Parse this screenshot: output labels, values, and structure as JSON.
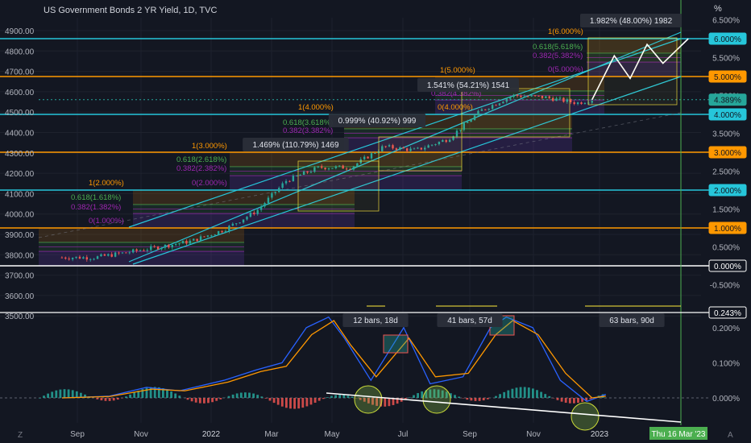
{
  "title": "US Government Bonds 2 YR Yield, 1D, TVC",
  "percent_header": "%",
  "colors": {
    "background": "#131722",
    "cyan": "#26c6da",
    "orange": "#ff9800",
    "white": "#ffffff",
    "green": "#26a69a",
    "red": "#ef5350",
    "blue_line": "#2962ff",
    "orange_line": "#ff9800",
    "fib_green": "#4caf50",
    "fib_purple": "#9c27b0",
    "yellow": "#ffeb3b",
    "vline_green": "#4caf50"
  },
  "chart_data": [
    {
      "type": "candlestick",
      "title": "US Government Bonds 2 YR Yield, 1D, TVC",
      "left_axis": [
        "4900.00",
        "4800.00",
        "4700.00",
        "4600.00",
        "4500.00",
        "4400.00",
        "4300.00",
        "4200.00",
        "4100.00",
        "4000.00",
        "3900.00",
        "3800.00",
        "3700.00",
        "3600.00",
        "3500.00"
      ],
      "left_axis_range": [
        3500,
        4900
      ],
      "right_axis": [
        "6.500%",
        "5.500%",
        "4.500%",
        "3.500%",
        "2.500%",
        "1.500%",
        "0.500%",
        "-0.500%"
      ],
      "right_axis_range": [
        -0.5,
        6.5
      ],
      "x_ticks": [
        "Sep",
        "Nov",
        "2022",
        "Mar",
        "May",
        "Jul",
        "Sep",
        "Nov",
        "2023"
      ],
      "series_path_percent": [
        [
          "2021-08-01",
          0.22
        ],
        [
          "2021-09-01",
          0.22
        ],
        [
          "2021-10-01",
          0.35
        ],
        [
          "2021-11-01",
          0.5
        ],
        [
          "2021-12-01",
          0.65
        ],
        [
          "2022-01-01",
          0.95
        ],
        [
          "2022-02-01",
          1.45
        ],
        [
          "2022-03-01",
          2.25
        ],
        [
          "2022-04-01",
          2.6
        ],
        [
          "2022-05-01",
          2.6
        ],
        [
          "2022-06-01",
          3.15
        ],
        [
          "2022-07-01",
          3.05
        ],
        [
          "2022-08-01",
          3.35
        ],
        [
          "2022-09-01",
          4.1
        ],
        [
          "2022-10-01",
          4.5
        ],
        [
          "2022-11-01",
          4.45
        ],
        [
          "2022-12-01",
          4.3
        ],
        [
          "2022-12-15",
          4.389
        ]
      ],
      "projection_percent": [
        [
          "2022-12-15",
          4.389
        ],
        [
          "2023-01-05",
          5.55
        ],
        [
          "2023-01-20",
          4.95
        ],
        [
          "2023-02-05",
          5.85
        ],
        [
          "2023-02-20",
          5.35
        ],
        [
          "2023-03-16",
          6.0
        ]
      ],
      "price_labels": [
        {
          "text": "6.000%",
          "value": 6.0,
          "color": "cyan"
        },
        {
          "text": "5.000%",
          "value": 5.0,
          "color": "orange"
        },
        {
          "text": "4.389%",
          "value": 4.389,
          "color": "green"
        },
        {
          "text": "4.000%",
          "value": 4.0,
          "color": "cyan"
        },
        {
          "text": "3.000%",
          "value": 3.0,
          "color": "orange"
        },
        {
          "text": "2.000%",
          "value": 2.0,
          "color": "cyan"
        },
        {
          "text": "1.000%",
          "value": 1.0,
          "color": "orange"
        },
        {
          "text": "0.000%",
          "value": 0.0,
          "color": "white"
        }
      ],
      "fib_labels": [
        "1(6.000%)",
        "0.618(5.618%)",
        "0.382(5.382%)",
        "0(5.000%)",
        "1(5.000%)",
        "0.382(4.382%)",
        "0(4.000%)",
        "1(4.000%)",
        "0.618(3.618%)",
        "0.382(3.382%)",
        "1(3.000%)",
        "0.618(2.618%)",
        "0.382(2.382%)",
        "0(2.000%)",
        "1(2.000%)",
        "0.618(1.618%)",
        "0.382(1.382%)",
        "0(1.000%)"
      ],
      "measure_labels": [
        "1.982% (48.00%) 1982",
        "1.541% (54.21%) 1541",
        "0.999% (40.92%) 999",
        "1.469% (110.79%) 1469"
      ]
    },
    {
      "type": "line",
      "indicator": "oscillator with histogram",
      "right_axis": [
        "0.243%",
        "0.200%",
        "0.100%",
        "0.000%"
      ],
      "right_axis_range": [
        -0.07,
        0.27
      ],
      "current_value_label": "0.243%",
      "bar_labels": [
        "12 bars, 18d",
        "41 bars, 57d",
        "63 bars, 90d"
      ],
      "series": [
        {
          "name": "blue",
          "color": "blue_line",
          "points": [
            [
              "2021-08-01",
              0.0
            ],
            [
              "2021-09-15",
              0.005
            ],
            [
              "2021-10-20",
              0.03
            ],
            [
              "2021-11-20",
              0.02
            ],
            [
              "2022-01-01",
              0.05
            ],
            [
              "2022-02-01",
              0.08
            ],
            [
              "2022-02-25",
              0.1
            ],
            [
              "2022-03-20",
              0.2
            ],
            [
              "2022-04-10",
              0.23
            ],
            [
              "2022-04-25",
              0.17
            ],
            [
              "2022-05-20",
              0.05
            ],
            [
              "2022-06-20",
              0.2
            ],
            [
              "2022-07-15",
              0.04
            ],
            [
              "2022-08-15",
              0.06
            ],
            [
              "2022-09-10",
              0.2
            ],
            [
              "2022-09-25",
              0.23
            ],
            [
              "2022-10-20",
              0.2
            ],
            [
              "2022-11-15",
              0.05
            ],
            [
              "2022-12-10",
              -0.01
            ],
            [
              "2022-12-28",
              0.01
            ]
          ]
        },
        {
          "name": "orange",
          "color": "orange_line",
          "points": [
            [
              "2021-08-01",
              0.0
            ],
            [
              "2021-09-15",
              0.004
            ],
            [
              "2021-10-25",
              0.025
            ],
            [
              "2021-11-25",
              0.02
            ],
            [
              "2022-01-05",
              0.045
            ],
            [
              "2022-02-05",
              0.075
            ],
            [
              "2022-03-01",
              0.09
            ],
            [
              "2022-03-25",
              0.18
            ],
            [
              "2022-04-15",
              0.22
            ],
            [
              "2022-05-01",
              0.15
            ],
            [
              "2022-05-25",
              0.06
            ],
            [
              "2022-06-25",
              0.17
            ],
            [
              "2022-07-20",
              0.06
            ],
            [
              "2022-08-20",
              0.07
            ],
            [
              "2022-09-15",
              0.18
            ],
            [
              "2022-10-01",
              0.22
            ],
            [
              "2022-10-25",
              0.18
            ],
            [
              "2022-11-20",
              0.07
            ],
            [
              "2022-12-15",
              0.0
            ],
            [
              "2022-12-28",
              0.005
            ]
          ]
        }
      ]
    }
  ],
  "end_date_label": "Thu 16 Mar '23",
  "corner_left": "Z",
  "corner_right": "A"
}
